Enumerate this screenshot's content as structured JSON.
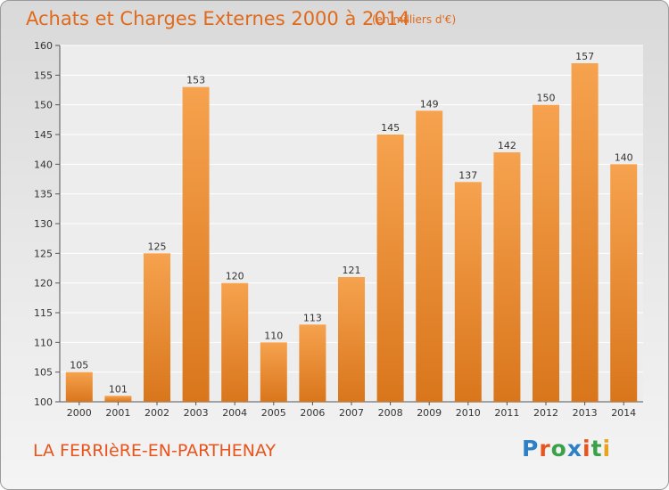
{
  "title": "Achats et Charges Externes 2000 à 2014",
  "subtitle": "(en milliers d'€)",
  "commune": "LA FERRIèRE-EN-PARTHENAY",
  "logo": {
    "text": "Proxiti",
    "colors": [
      "#2f7fc6",
      "#e8541c",
      "#3aa14a",
      "#2f7fc6",
      "#e8541c",
      "#3aa14a",
      "#e8a21c"
    ]
  },
  "colors": {
    "bar_light": "#f6a24e",
    "bar_dark": "#d9761c",
    "text": "#333333",
    "title": "#e06a1c"
  },
  "chart_data": {
    "type": "bar",
    "categories": [
      "2000",
      "2001",
      "2002",
      "2003",
      "2004",
      "2005",
      "2006",
      "2007",
      "2008",
      "2009",
      "2010",
      "2011",
      "2012",
      "2013",
      "2014"
    ],
    "values": [
      105,
      101,
      125,
      153,
      120,
      110,
      113,
      121,
      145,
      149,
      137,
      142,
      150,
      157,
      140
    ],
    "ylim": [
      100,
      160
    ],
    "yticks": [
      100,
      105,
      110,
      115,
      120,
      125,
      130,
      135,
      140,
      145,
      150,
      155,
      160
    ],
    "grid": true,
    "legend": "none"
  }
}
